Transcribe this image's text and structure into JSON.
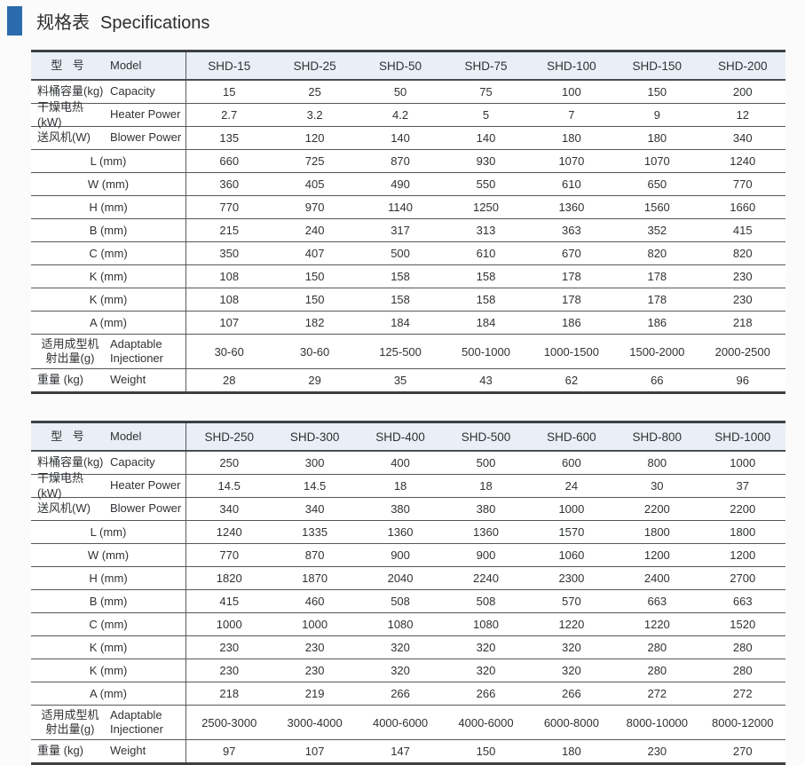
{
  "page": {
    "title_zh": "规格表",
    "title_en": "Specifications",
    "accent_color": "#2a6bad",
    "header_bg": "#e9eff6"
  },
  "header_labels": {
    "zh": "型 号",
    "en": "Model"
  },
  "tables": [
    {
      "models": [
        "SHD-15",
        "SHD-25",
        "SHD-50",
        "SHD-75",
        "SHD-100",
        "SHD-150",
        "SHD-200"
      ],
      "rows": [
        {
          "zh": "料桶容量(kg)",
          "en": "Capacity",
          "values": [
            "15",
            "25",
            "50",
            "75",
            "100",
            "150",
            "200"
          ]
        },
        {
          "zh": "干燥电热(kW)",
          "en": "Heater Power",
          "values": [
            "2.7",
            "3.2",
            "4.2",
            "5",
            "7",
            "9",
            "12"
          ]
        },
        {
          "zh": "送风机(W)",
          "en": "Blower Power",
          "values": [
            "135",
            "120",
            "140",
            "140",
            "180",
            "180",
            "340"
          ]
        },
        {
          "label": "L (mm)",
          "values": [
            "660",
            "725",
            "870",
            "930",
            "1070",
            "1070",
            "1240"
          ]
        },
        {
          "label": "W (mm)",
          "values": [
            "360",
            "405",
            "490",
            "550",
            "610",
            "650",
            "770"
          ]
        },
        {
          "label": "H (mm)",
          "values": [
            "770",
            "970",
            "1140",
            "1250",
            "1360",
            "1560",
            "1660"
          ]
        },
        {
          "label": "B (mm)",
          "values": [
            "215",
            "240",
            "317",
            "313",
            "363",
            "352",
            "415"
          ]
        },
        {
          "label": "C (mm)",
          "values": [
            "350",
            "407",
            "500",
            "610",
            "670",
            "820",
            "820"
          ]
        },
        {
          "label": "K (mm)",
          "values": [
            "108",
            "150",
            "158",
            "158",
            "178",
            "178",
            "230"
          ]
        },
        {
          "label": "K (mm)",
          "values": [
            "108",
            "150",
            "158",
            "158",
            "178",
            "178",
            "230"
          ]
        },
        {
          "label": "A (mm)",
          "values": [
            "107",
            "182",
            "184",
            "184",
            "186",
            "186",
            "218"
          ]
        },
        {
          "zh": "适用成型机\n射出量(g)",
          "en": "Adaptable\nInjectioner",
          "values": [
            "30-60",
            "30-60",
            "125-500",
            "500-1000",
            "1000-1500",
            "1500-2000",
            "2000-2500"
          ]
        },
        {
          "zh": "重量 (kg)",
          "en": "Weight",
          "values": [
            "28",
            "29",
            "35",
            "43",
            "62",
            "66",
            "96"
          ]
        }
      ]
    },
    {
      "models": [
        "SHD-250",
        "SHD-300",
        "SHD-400",
        "SHD-500",
        "SHD-600",
        "SHD-800",
        "SHD-1000"
      ],
      "rows": [
        {
          "zh": "料桶容量(kg)",
          "en": "Capacity",
          "values": [
            "250",
            "300",
            "400",
            "500",
            "600",
            "800",
            "1000"
          ]
        },
        {
          "zh": "干燥电热(kW)",
          "en": "Heater Power",
          "values": [
            "14.5",
            "14.5",
            "18",
            "18",
            "24",
            "30",
            "37"
          ]
        },
        {
          "zh": "送风机(W)",
          "en": "Blower Power",
          "values": [
            "340",
            "340",
            "380",
            "380",
            "1000",
            "2200",
            "2200"
          ]
        },
        {
          "label": "L (mm)",
          "values": [
            "1240",
            "1335",
            "1360",
            "1360",
            "1570",
            "1800",
            "1800"
          ]
        },
        {
          "label": "W (mm)",
          "values": [
            "770",
            "870",
            "900",
            "900",
            "1060",
            "1200",
            "1200"
          ]
        },
        {
          "label": "H (mm)",
          "values": [
            "1820",
            "1870",
            "2040",
            "2240",
            "2300",
            "2400",
            "2700"
          ]
        },
        {
          "label": "B (mm)",
          "values": [
            "415",
            "460",
            "508",
            "508",
            "570",
            "663",
            "663"
          ]
        },
        {
          "label": "C (mm)",
          "values": [
            "1000",
            "1000",
            "1080",
            "1080",
            "1220",
            "1220",
            "1520"
          ]
        },
        {
          "label": "K (mm)",
          "values": [
            "230",
            "230",
            "320",
            "320",
            "320",
            "280",
            "280"
          ]
        },
        {
          "label": "K (mm)",
          "values": [
            "230",
            "230",
            "320",
            "320",
            "320",
            "280",
            "280"
          ]
        },
        {
          "label": "A (mm)",
          "values": [
            "218",
            "219",
            "266",
            "266",
            "266",
            "272",
            "272"
          ]
        },
        {
          "zh": "适用成型机\n射出量(g)",
          "en": "Adaptable\nInjectioner",
          "values": [
            "2500-3000",
            "3000-4000",
            "4000-6000",
            "4000-6000",
            "6000-8000",
            "8000-10000",
            "8000-12000"
          ]
        },
        {
          "zh": "重量 (kg)",
          "en": "Weight",
          "values": [
            "97",
            "107",
            "147",
            "150",
            "180",
            "230",
            "270"
          ]
        }
      ]
    }
  ]
}
